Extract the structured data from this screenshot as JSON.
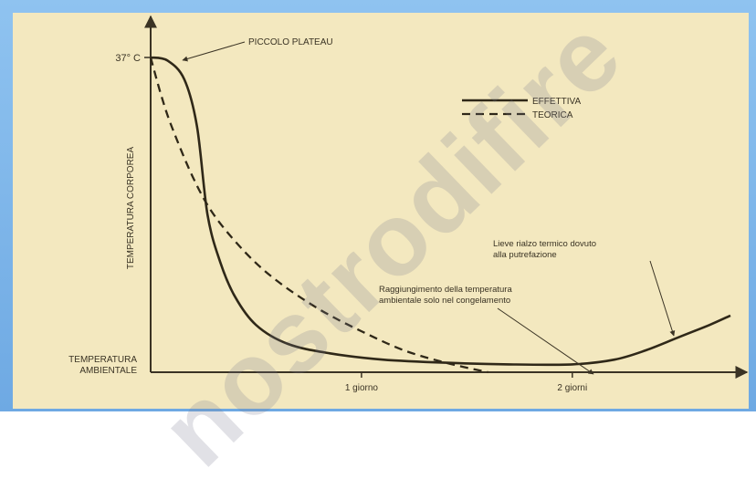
{
  "chart_data": {
    "type": "line",
    "title": "",
    "xlabel": "",
    "ylabel": "TEMPERATURA CORPOREA",
    "y_tick_top": "37° C",
    "y_tick_bottom": [
      "TEMPERATURA",
      "AMBIENTALE"
    ],
    "x_ticks": [
      {
        "x": 1,
        "label": "1 giorno"
      },
      {
        "x": 2,
        "label": "2 giorni"
      }
    ],
    "xlim": [
      0,
      2.75
    ],
    "ylim": [
      0,
      1
    ],
    "legend": {
      "placement": "top-right",
      "entries": [
        "EFFETTIVA",
        "TEORICA"
      ]
    },
    "series": [
      {
        "name": "EFFETTIVA",
        "style": "solid",
        "x": [
          0,
          0.08,
          0.16,
          0.22,
          0.27,
          0.33,
          0.4,
          0.5,
          0.65,
          0.85,
          1.1,
          1.4,
          1.7,
          2.0,
          2.2,
          2.35,
          2.5,
          2.65,
          2.75
        ],
        "y": [
          1.0,
          0.99,
          0.93,
          0.78,
          0.5,
          0.35,
          0.24,
          0.15,
          0.09,
          0.06,
          0.04,
          0.03,
          0.025,
          0.025,
          0.04,
          0.07,
          0.11,
          0.15,
          0.18
        ]
      },
      {
        "name": "TEORICA",
        "style": "dashed",
        "x": [
          0,
          0.05,
          0.1,
          0.2,
          0.3,
          0.45,
          0.6,
          0.8,
          1.0,
          1.2,
          1.4,
          1.6
        ],
        "y": [
          1.0,
          0.88,
          0.78,
          0.62,
          0.5,
          0.38,
          0.29,
          0.2,
          0.13,
          0.07,
          0.03,
          0.0
        ]
      }
    ],
    "annotations": [
      {
        "text": "PICCOLO PLATEAU"
      },
      {
        "text_lines": [
          "Raggiungimento della temperatura",
          "ambientale solo nel congelamento"
        ]
      },
      {
        "text_lines": [
          "Lieve rialzo termico dovuto",
          "alla putrefazione"
        ]
      }
    ],
    "colors": {
      "line": "#3a3020",
      "background": "#f3e8bf",
      "frame": "#7fb6ea"
    }
  },
  "watermark": "nostrodifire"
}
